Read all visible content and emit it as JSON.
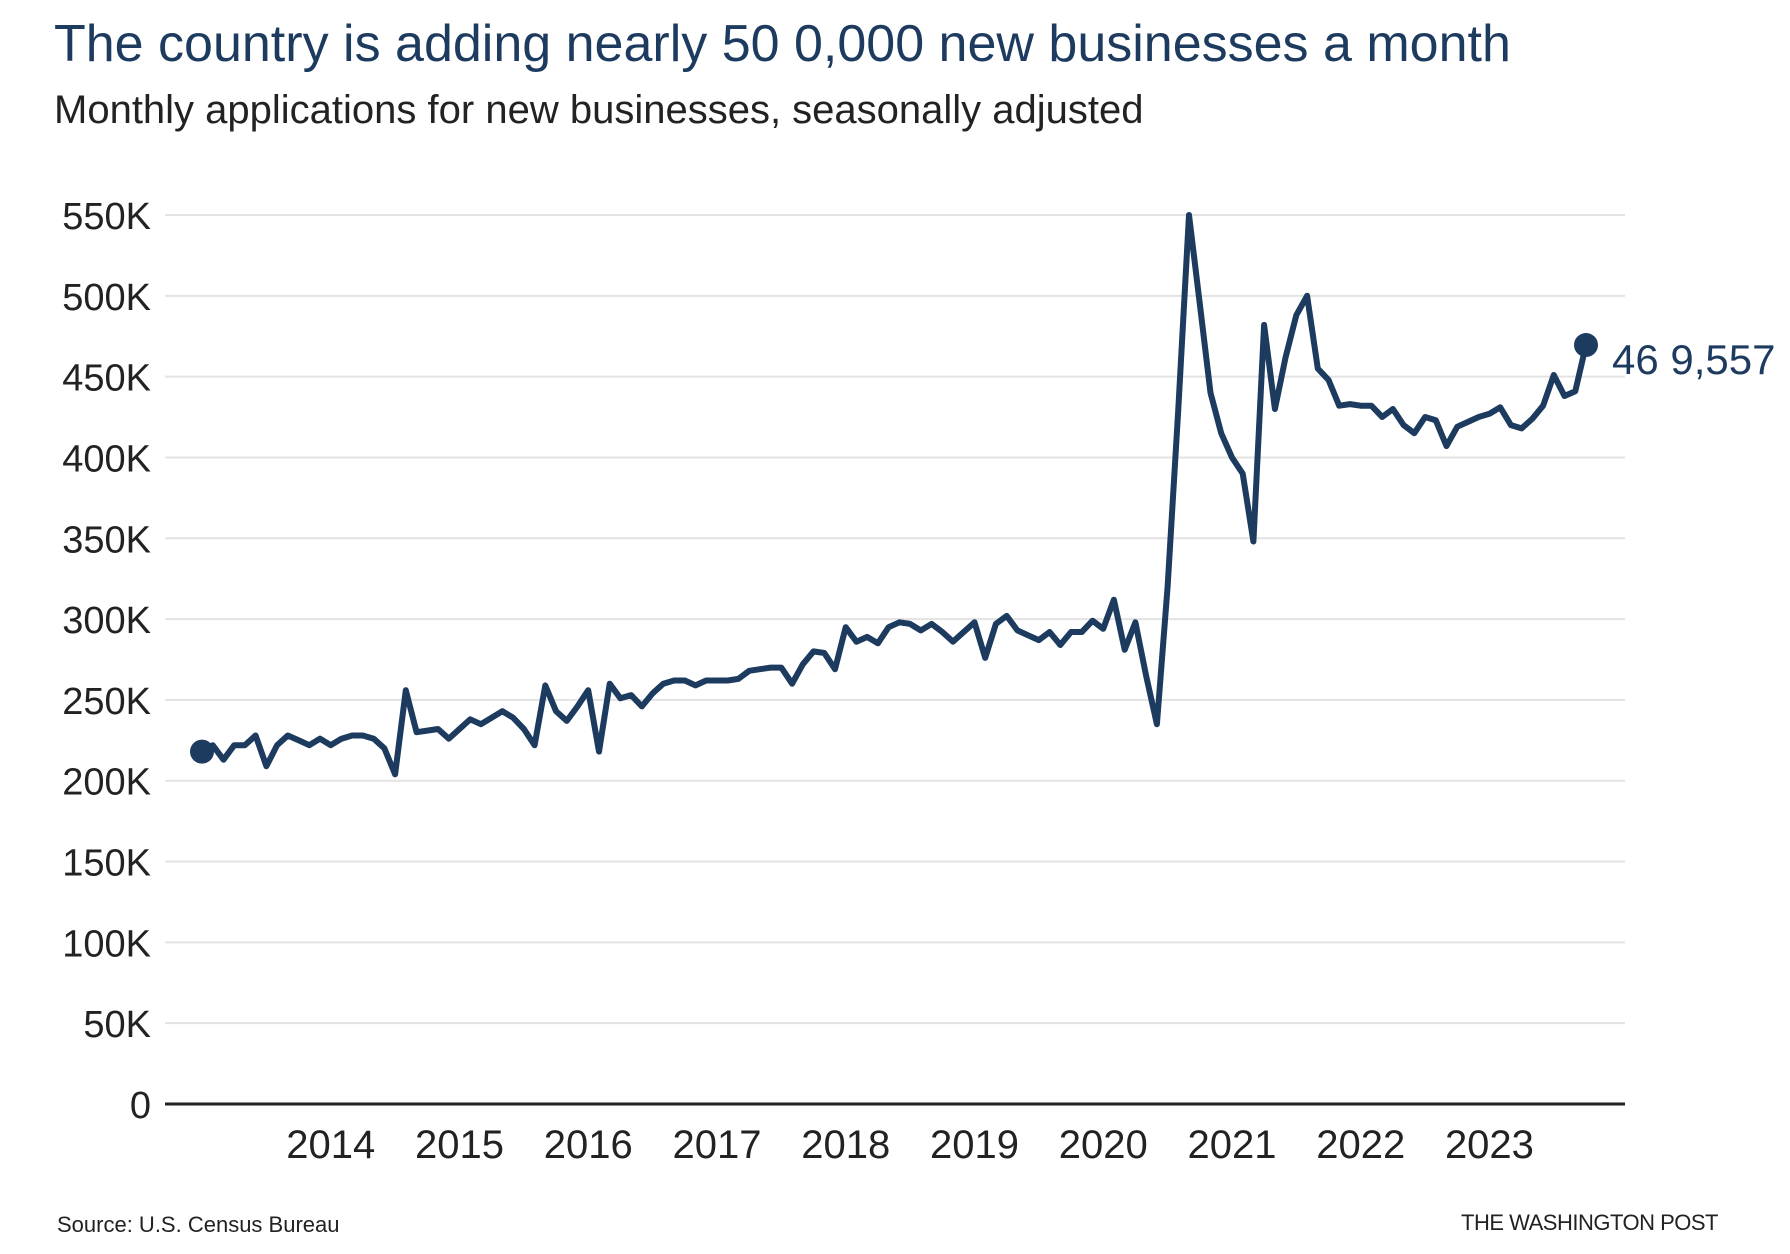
{
  "header": {
    "title": "The country is adding nearly 50  0,000 new businesses a month",
    "subtitle": "Monthly applications for new businesses, seasonally adjusted"
  },
  "footer": {
    "source": "Source: U.S. Census Bureau",
    "credit": "THE WASHINGTON POST"
  },
  "colors": {
    "line": "#1d3a5f",
    "grid": "#e3e3e3",
    "axis": "#222222",
    "text": "#222222"
  },
  "chart_data": {
    "type": "line",
    "title": "The country is adding nearly 50  0,000 new businesses a month",
    "subtitle": "Monthly applications for new businesses, seasonally adjusted",
    "xlabel": "",
    "ylabel": "",
    "ylim": [
      0,
      550000
    ],
    "yticks": [
      0,
      50000,
      100000,
      150000,
      200000,
      250000,
      300000,
      350000,
      400000,
      450000,
      500000,
      550000
    ],
    "ytick_labels": [
      "0",
      "50K",
      "100K",
      "150K",
      "200K",
      "250K",
      "300K",
      "350K",
      "400K",
      "450K",
      "500K",
      "550K"
    ],
    "xticks": [
      "2014",
      "2015",
      "2016",
      "2017",
      "2018",
      "2019",
      "2020",
      "2021",
      "2022",
      "2023"
    ],
    "grid": true,
    "end_label": "46 9,557",
    "series": [
      {
        "start": "2013-07",
        "values": [
          218000,
          222000,
          213000,
          222000,
          222000,
          228000,
          209000,
          222000,
          228000,
          225000,
          222000,
          226000,
          222000,
          226000,
          228000,
          228000,
          226000,
          220000,
          204000,
          256000,
          230000,
          231000,
          232000,
          226000,
          232000,
          238000,
          235000,
          239000,
          243000,
          239000,
          232000,
          222000,
          259000,
          243000,
          237000,
          246000,
          256000,
          218000,
          260000,
          251000,
          253000,
          246000,
          254000,
          260000,
          262000,
          262000,
          259000,
          262000,
          262000,
          262000,
          263000,
          268000,
          269000,
          270000,
          270000,
          260000,
          272000,
          280000,
          279000,
          269000,
          295000,
          286000,
          289000,
          285000,
          295000,
          298000,
          297000,
          293000,
          297000,
          292000,
          286000,
          292000,
          298000,
          276000,
          297000,
          302000,
          293000,
          290000,
          287000,
          292000,
          284000,
          292000,
          292000,
          299000,
          294000,
          312000,
          281000,
          298000,
          265000,
          235000,
          320000,
          430000,
          550000,
          495000,
          440000,
          415000,
          400000,
          390000,
          348000,
          482000,
          430000,
          462000,
          488000,
          500000,
          455000,
          448000,
          432000,
          433000,
          432000,
          432000,
          425000,
          430000,
          420000,
          415000,
          425000,
          423000,
          407000,
          419000,
          422000,
          425000,
          427000,
          431000,
          420000,
          418000,
          424000,
          432000,
          451000,
          438000,
          441000,
          469557
        ]
      }
    ]
  }
}
